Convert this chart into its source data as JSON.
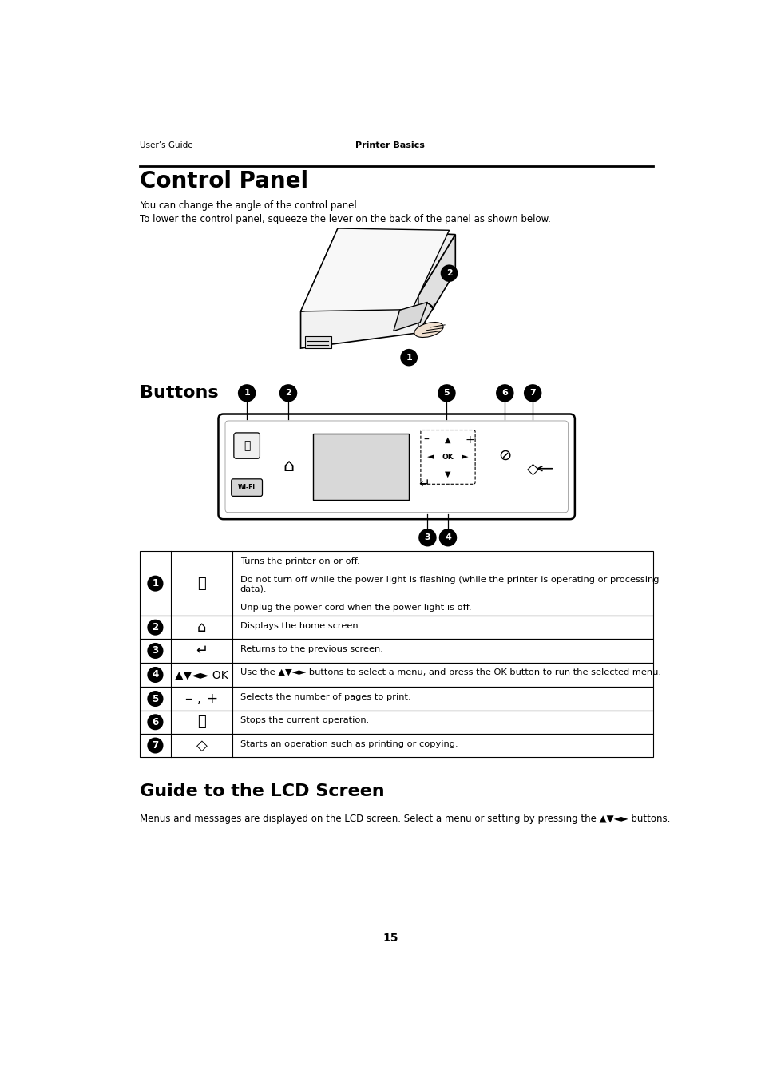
{
  "bg_color": "#ffffff",
  "text_color": "#000000",
  "page_width": 9.54,
  "page_height": 13.5,
  "header_left": "User’s Guide",
  "header_center": "Printer Basics",
  "section1_title": "Control Panel",
  "section1_body1": "You can change the angle of the control panel.",
  "section1_body2": "To lower the control panel, squeeze the lever on the back of the panel as shown below.",
  "section2_title": "Buttons",
  "section3_title": "Guide to the LCD Screen",
  "section3_body": "Menus and messages are displayed on the LCD screen. Select a menu or setting by pressing the ▲▼◄► buttons.",
  "footer_page": "15",
  "table_rows": [
    {
      "num": "1",
      "icon": "⏻",
      "desc": "Turns the printer on or off.\n\nDo not turn off while the power light is flashing (while the printer is operating or processing\ndata).\n\nUnplug the power cord when the power light is off."
    },
    {
      "num": "2",
      "icon": "⌂",
      "desc": "Displays the home screen."
    },
    {
      "num": "3",
      "icon": "↵",
      "desc": "Returns to the previous screen."
    },
    {
      "num": "4",
      "icon": "▲▼◄► OK",
      "desc": "Use the ▲▼◄► buttons to select a menu, and press the OK button to run the selected menu."
    },
    {
      "num": "5",
      "icon": "– , +",
      "desc": "Selects the number of pages to print."
    },
    {
      "num": "6",
      "icon": "ⓧ",
      "desc": "Stops the current operation."
    },
    {
      "num": "7",
      "icon": "◇",
      "desc": "Starts an operation such as printing or copying."
    }
  ]
}
